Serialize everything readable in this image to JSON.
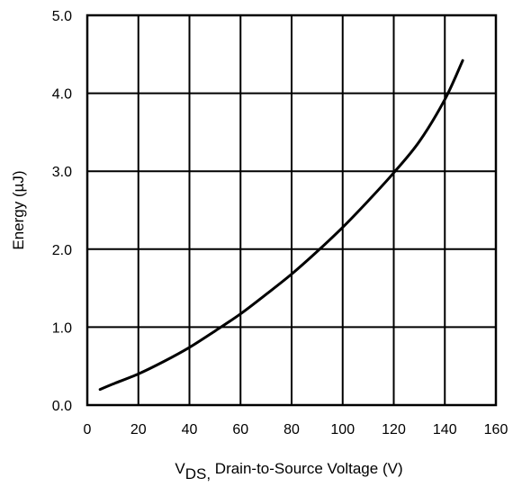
{
  "chart_data": {
    "type": "line",
    "title": "",
    "xlabel": {
      "main": "V",
      "subscript": "DS,",
      "rest": " Drain-to-Source Voltage (V)"
    },
    "ylabel": "Energy (µJ)",
    "xlim": [
      0,
      160
    ],
    "ylim": [
      0,
      5
    ],
    "x_ticks": [
      "0",
      "20",
      "40",
      "60",
      "80",
      "100",
      "120",
      "140",
      "160"
    ],
    "y_ticks": [
      "0.0",
      "1.0",
      "2.0",
      "3.0",
      "4.0",
      "5.0"
    ],
    "grid": true,
    "series": [
      {
        "x": [
          5,
          10,
          20,
          30,
          40,
          50,
          60,
          70,
          80,
          90,
          100,
          110,
          120,
          130,
          140,
          147
        ],
        "y": [
          0.2,
          0.27,
          0.4,
          0.56,
          0.74,
          0.95,
          1.17,
          1.42,
          1.68,
          1.97,
          2.28,
          2.62,
          2.98,
          3.38,
          3.92,
          4.42
        ]
      }
    ],
    "colors": {
      "line": "#000000",
      "grid": "#000000"
    }
  }
}
